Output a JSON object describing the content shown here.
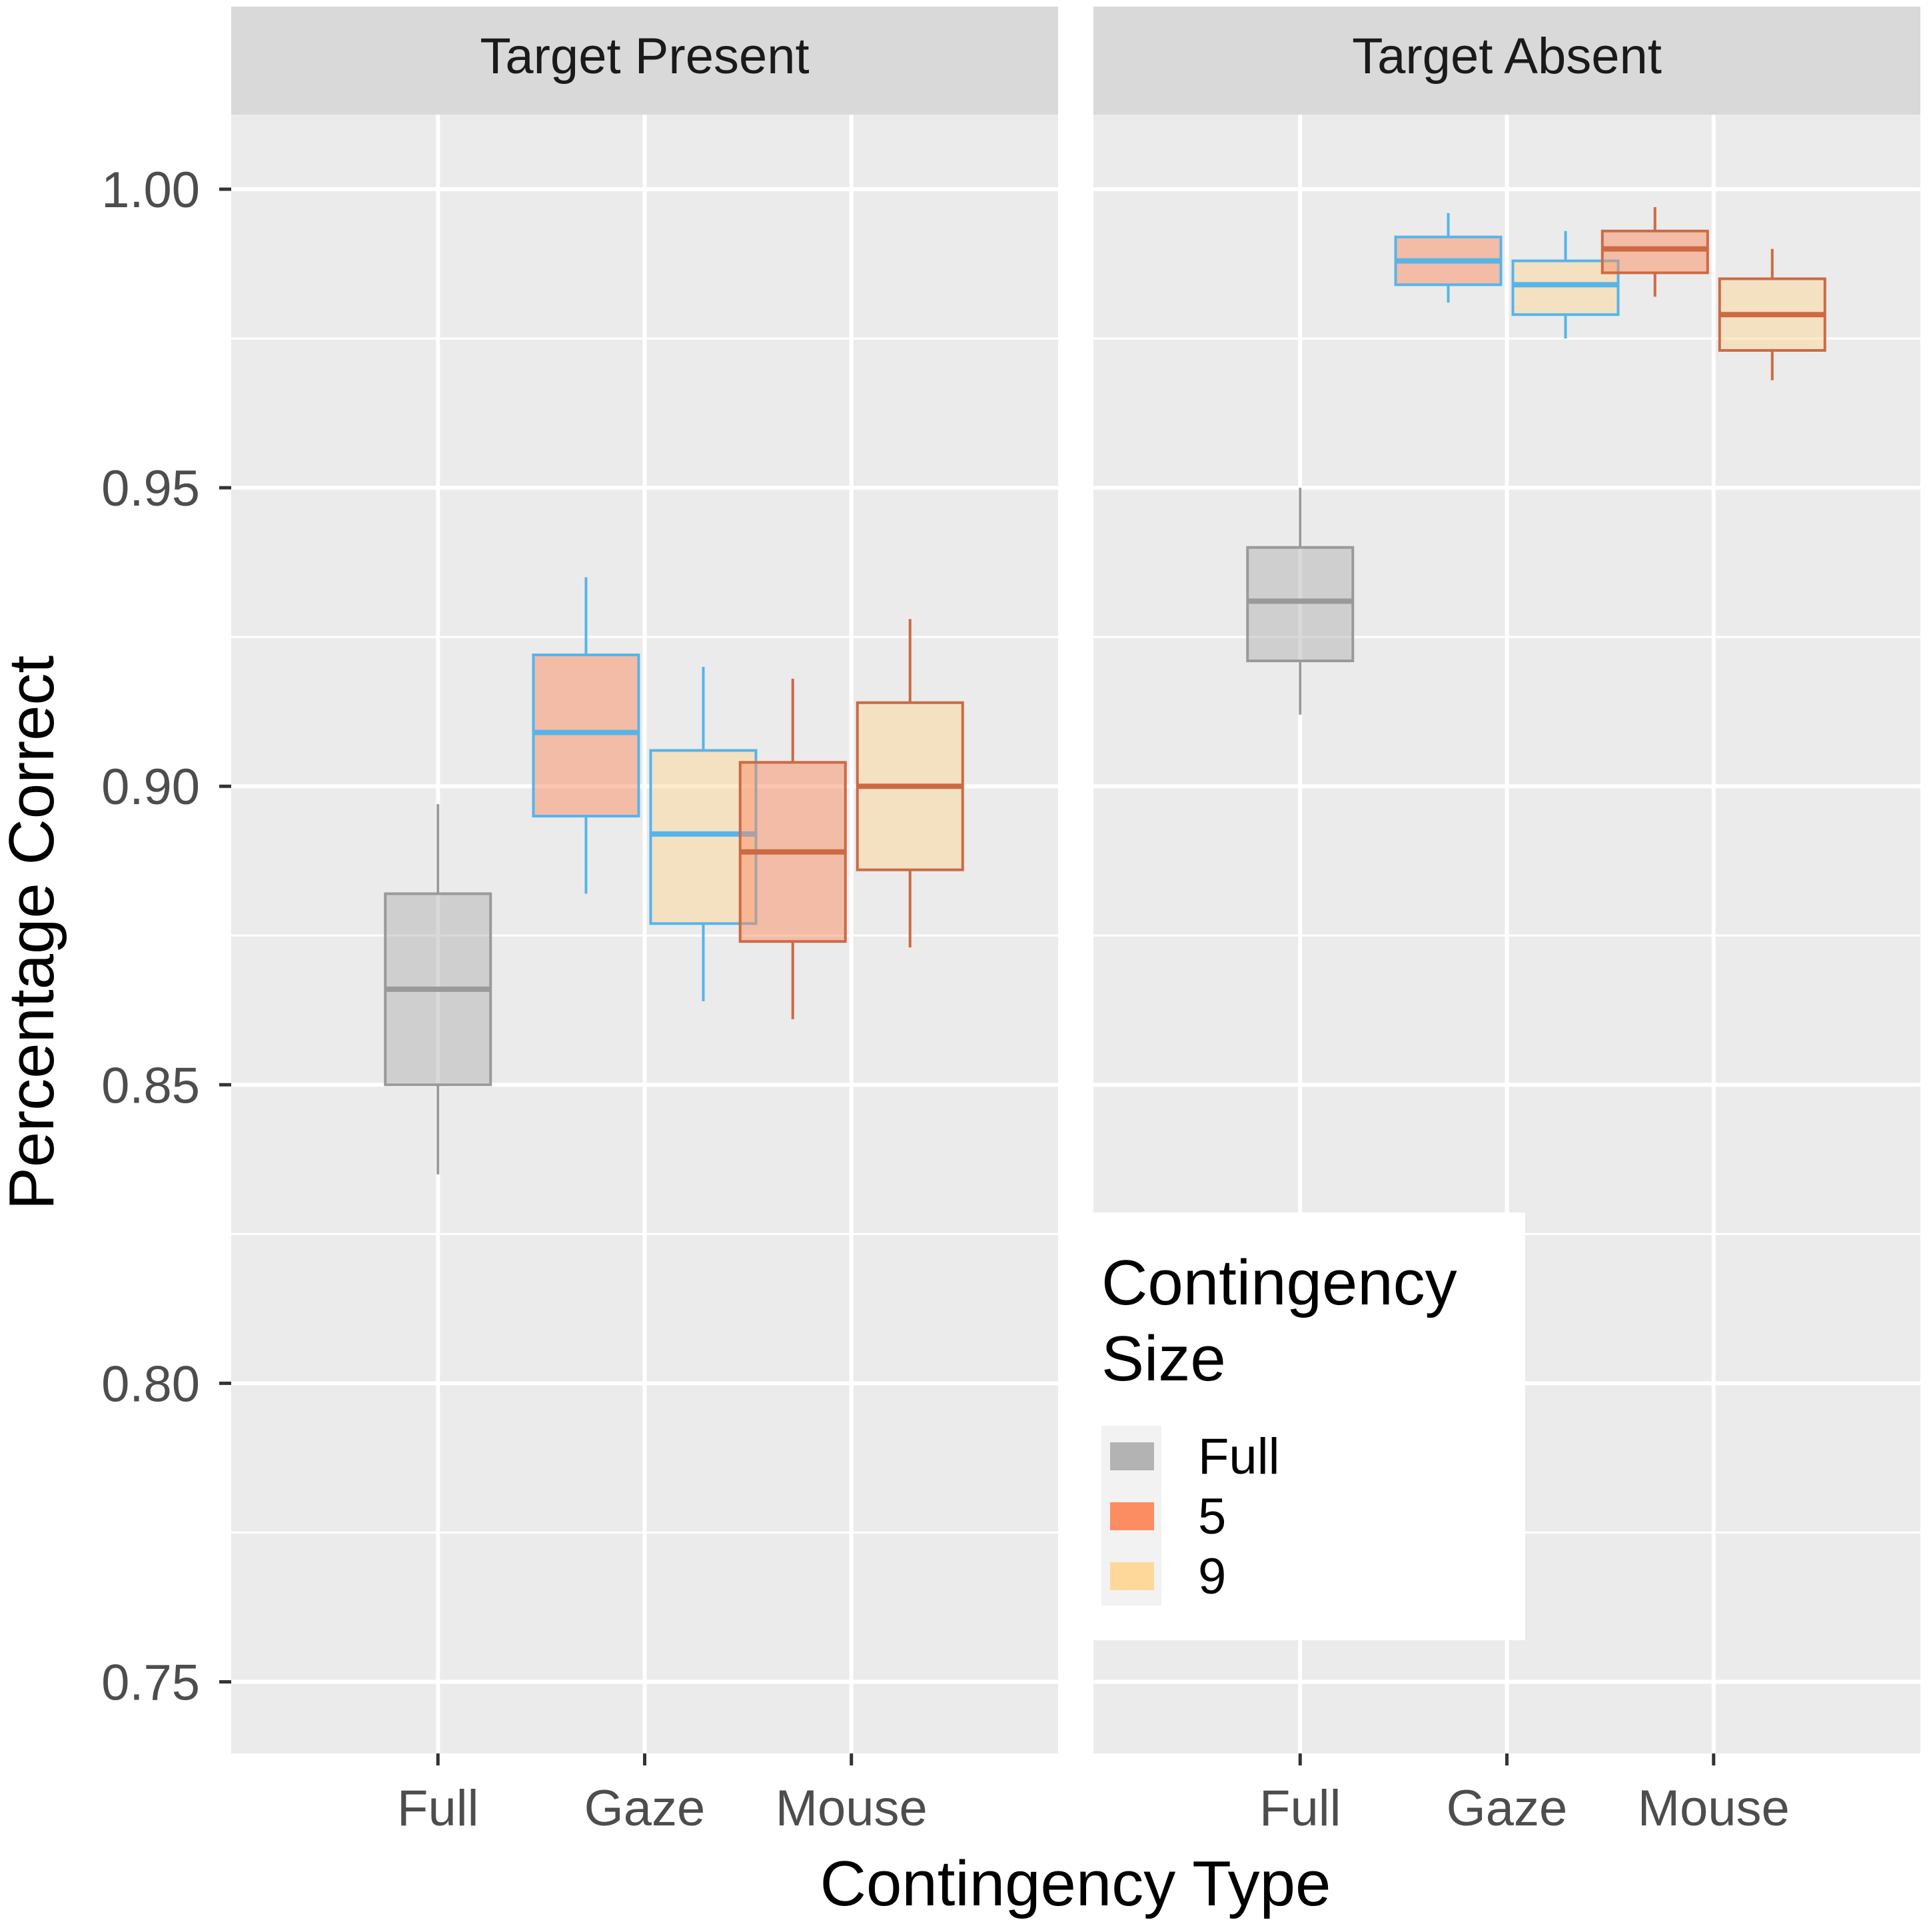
{
  "chart_data": {
    "type": "boxplot",
    "xlabel": "Contingency Type",
    "ylabel": "Percentage Correct",
    "ylim": [
      0.738,
      1.0125
    ],
    "y_ticks": [
      0.75,
      0.8,
      0.85,
      0.9,
      0.95,
      1.0
    ],
    "y_tick_labels": [
      "0.75",
      "0.80",
      "0.85",
      "0.90",
      "0.95",
      "1.00"
    ],
    "categories": [
      "Full",
      "Gaze",
      "Mouse"
    ],
    "grid": true,
    "facets": [
      {
        "title": "Target Present",
        "boxes": [
          {
            "category": "Full",
            "size": "Full",
            "min": 0.835,
            "q1": 0.85,
            "median": 0.866,
            "q3": 0.882,
            "max": 0.897
          },
          {
            "category": "Gaze",
            "size": "5",
            "min": 0.882,
            "q1": 0.895,
            "median": 0.909,
            "q3": 0.922,
            "max": 0.935
          },
          {
            "category": "Gaze",
            "size": "9",
            "min": 0.864,
            "q1": 0.877,
            "median": 0.892,
            "q3": 0.906,
            "max": 0.92
          },
          {
            "category": "Mouse",
            "size": "5",
            "min": 0.861,
            "q1": 0.874,
            "median": 0.889,
            "q3": 0.904,
            "max": 0.918
          },
          {
            "category": "Mouse",
            "size": "9",
            "min": 0.873,
            "q1": 0.886,
            "median": 0.9,
            "q3": 0.914,
            "max": 0.928
          }
        ]
      },
      {
        "title": "Target Absent",
        "boxes": [
          {
            "category": "Full",
            "size": "Full",
            "min": 0.912,
            "q1": 0.921,
            "median": 0.931,
            "q3": 0.94,
            "max": 0.95
          },
          {
            "category": "Gaze",
            "size": "5",
            "min": 0.981,
            "q1": 0.984,
            "median": 0.988,
            "q3": 0.992,
            "max": 0.996
          },
          {
            "category": "Gaze",
            "size": "9",
            "min": 0.975,
            "q1": 0.979,
            "median": 0.984,
            "q3": 0.988,
            "max": 0.993
          },
          {
            "category": "Mouse",
            "size": "5",
            "min": 0.982,
            "q1": 0.986,
            "median": 0.99,
            "q3": 0.993,
            "max": 0.997
          },
          {
            "category": "Mouse",
            "size": "9",
            "min": 0.968,
            "q1": 0.973,
            "median": 0.979,
            "q3": 0.985,
            "max": 0.99
          }
        ]
      }
    ],
    "fill_colors": {
      "Full": "#b3b3b3",
      "5": "#fc8d62",
      "9": "#fdd89a"
    },
    "line_colors": {
      "Full": "#9a9a9a",
      "Gaze": "#56b4e9",
      "Mouse": "#cc6a44"
    },
    "legend": {
      "title_lines": [
        "Contingency",
        "Size"
      ],
      "placement": "inside-lower-right",
      "items": [
        {
          "label": "Full",
          "color": "#b3b3b3"
        },
        {
          "label": "5",
          "color": "#fc8d62"
        },
        {
          "label": "9",
          "color": "#fdd89a"
        }
      ]
    }
  }
}
